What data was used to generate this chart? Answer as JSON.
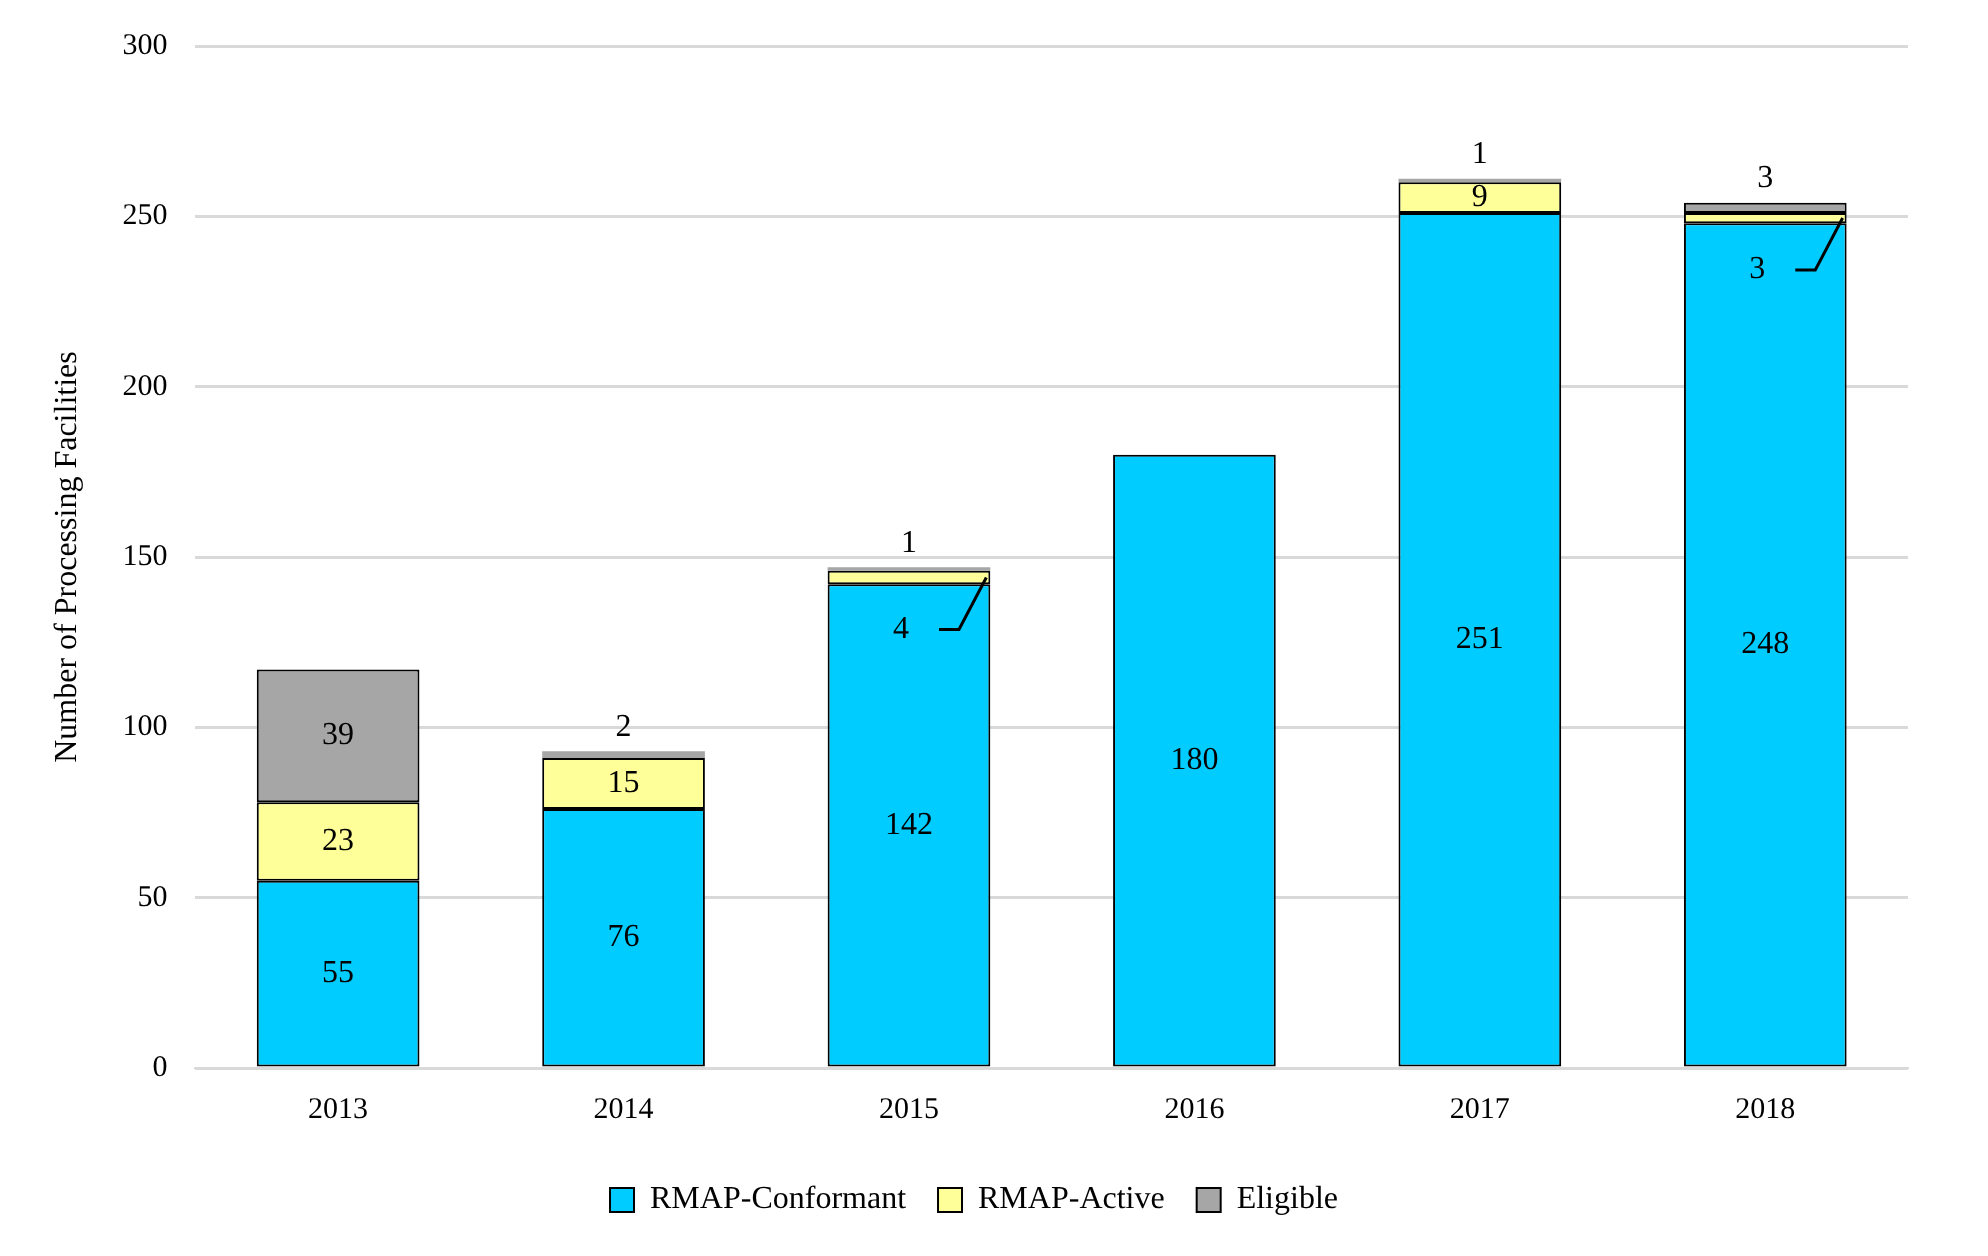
{
  "chart_data": {
    "type": "bar",
    "stacked": true,
    "ylabel": "Number of Processing Facilities",
    "categories": [
      "2013",
      "2014",
      "2015",
      "2016",
      "2017",
      "2018"
    ],
    "series": [
      {
        "name": "RMAP-Conformant",
        "color": "#00ccff",
        "values": [
          55,
          76,
          142,
          180,
          251,
          248
        ],
        "value_labels": [
          "55",
          "76",
          "142",
          "180",
          "251",
          "248"
        ]
      },
      {
        "name": "RMAP-Active",
        "color": "#ffff99",
        "values": [
          23,
          15,
          4,
          0,
          9,
          3
        ],
        "value_labels": [
          "23",
          "15",
          "4",
          null,
          "9",
          "3"
        ]
      },
      {
        "name": "Eligible",
        "color": "#a6a6a6",
        "values": [
          39,
          2,
          1,
          0,
          1,
          3
        ],
        "value_labels": [
          "39",
          "2",
          "1",
          null,
          "1",
          "3"
        ]
      }
    ],
    "ylim": [
      0,
      300
    ],
    "yticks": [
      0,
      50,
      100,
      150,
      200,
      250,
      300
    ],
    "grid": "y",
    "legend": "bottom"
  }
}
